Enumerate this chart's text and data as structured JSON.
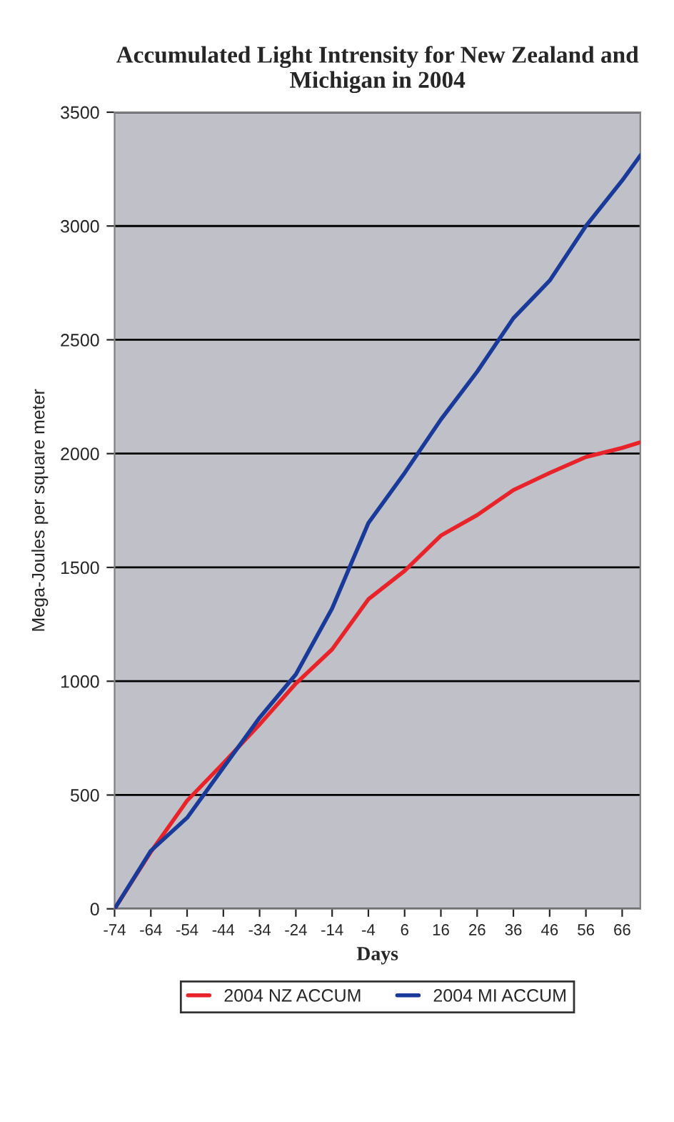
{
  "chart_data": {
    "type": "line",
    "title": "Accumulated Light Intrensity for New Zealand and Michigan in 2004",
    "xlabel": "Days",
    "ylabel": "Mega-Joules per square meter",
    "xlim": [
      -74,
      71
    ],
    "xticks": [
      -74,
      -64,
      -54,
      -44,
      -34,
      -24,
      -14,
      -4,
      6,
      16,
      26,
      36,
      46,
      56,
      66
    ],
    "ylim": [
      0,
      3500
    ],
    "yticks": [
      0,
      500,
      1000,
      1500,
      2000,
      2500,
      3000,
      3500
    ],
    "x": [
      -74,
      -64,
      -54,
      -44,
      -34,
      -24,
      -14,
      -4,
      6,
      16,
      26,
      36,
      46,
      56,
      66,
      71
    ],
    "series": [
      {
        "name": "2004 NZ ACCUM",
        "color": "#e8242a",
        "values": [
          0,
          250,
          475,
          640,
          810,
          990,
          1140,
          1360,
          1485,
          1640,
          1730,
          1840,
          1915,
          1985,
          2025,
          2050
        ]
      },
      {
        "name": "2004 MI ACCUM",
        "color": "#1a3a9a",
        "values": [
          0,
          255,
          400,
          620,
          840,
          1030,
          1320,
          1695,
          1915,
          2150,
          2360,
          2595,
          2760,
          3000,
          3200,
          3310
        ]
      }
    ],
    "grid": "y",
    "legend": "bottom",
    "marker": "none",
    "line_style": "solid"
  }
}
